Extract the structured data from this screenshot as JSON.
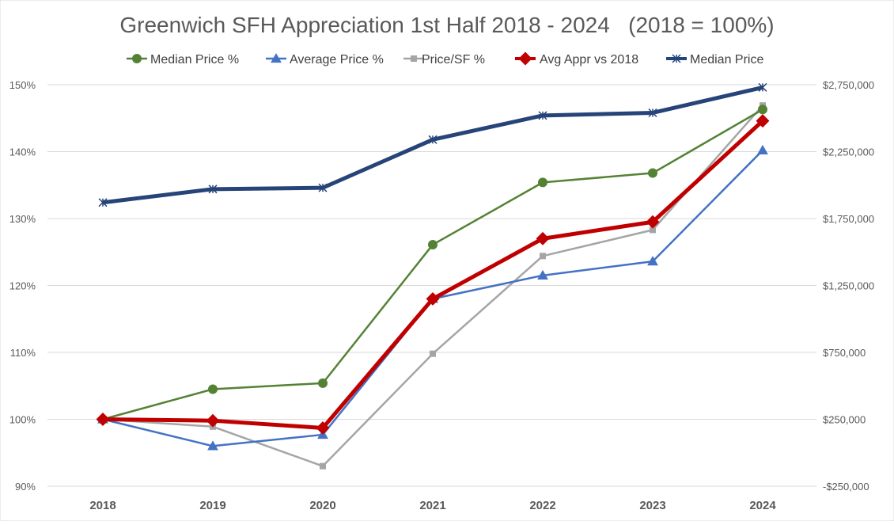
{
  "chart_data": {
    "type": "line",
    "title": "Greenwich SFH Appreciation 1st Half 2018 - 2024   (2018 = 100%)",
    "categories": [
      "2018",
      "2019",
      "2020",
      "2021",
      "2022",
      "2023",
      "2024"
    ],
    "y_left": {
      "min": 90,
      "max": 150,
      "ticks": [
        90,
        100,
        110,
        120,
        130,
        140,
        150
      ],
      "tick_labels": [
        "90%",
        "100%",
        "110%",
        "120%",
        "130%",
        "140%",
        "150%"
      ]
    },
    "y_right": {
      "min": -250000,
      "max": 2750000,
      "ticks": [
        -250000,
        250000,
        750000,
        1250000,
        1750000,
        2250000,
        2750000
      ],
      "tick_labels": [
        "-$250,000",
        "$250,000",
        "$750,000",
        "$1,250,000",
        "$1,750,000",
        "$2,250,000",
        "$2,750,000"
      ]
    },
    "grid": "horizontal",
    "legend_position": "top",
    "series": [
      {
        "name": "Median Price %",
        "axis": "left",
        "color": "#548235",
        "marker": "circle",
        "width": 2.5,
        "values": [
          100,
          104.5,
          105.4,
          126.1,
          135.4,
          136.8,
          146.3
        ]
      },
      {
        "name": "Average Price %",
        "axis": "left",
        "color": "#4472C4",
        "marker": "triangle",
        "width": 2.5,
        "values": [
          100,
          96.0,
          97.7,
          118.0,
          121.5,
          123.6,
          140.2
        ]
      },
      {
        "name": "Price/SF %",
        "axis": "left",
        "color": "#A5A5A5",
        "marker": "square",
        "width": 2.5,
        "values": [
          100,
          98.9,
          93.0,
          109.8,
          124.4,
          128.3,
          146.9
        ]
      },
      {
        "name": "Avg Appr vs 2018",
        "axis": "left",
        "color": "#C00000",
        "marker": "diamond",
        "width": 5,
        "values": [
          100,
          99.8,
          98.7,
          118.0,
          127.0,
          129.5,
          144.6
        ]
      },
      {
        "name": "Median Price",
        "axis": "right",
        "color": "#264478",
        "marker": "star",
        "width": 5,
        "values": [
          1870000,
          1970000,
          1980000,
          2340000,
          2520000,
          2540000,
          2730000
        ]
      }
    ]
  }
}
